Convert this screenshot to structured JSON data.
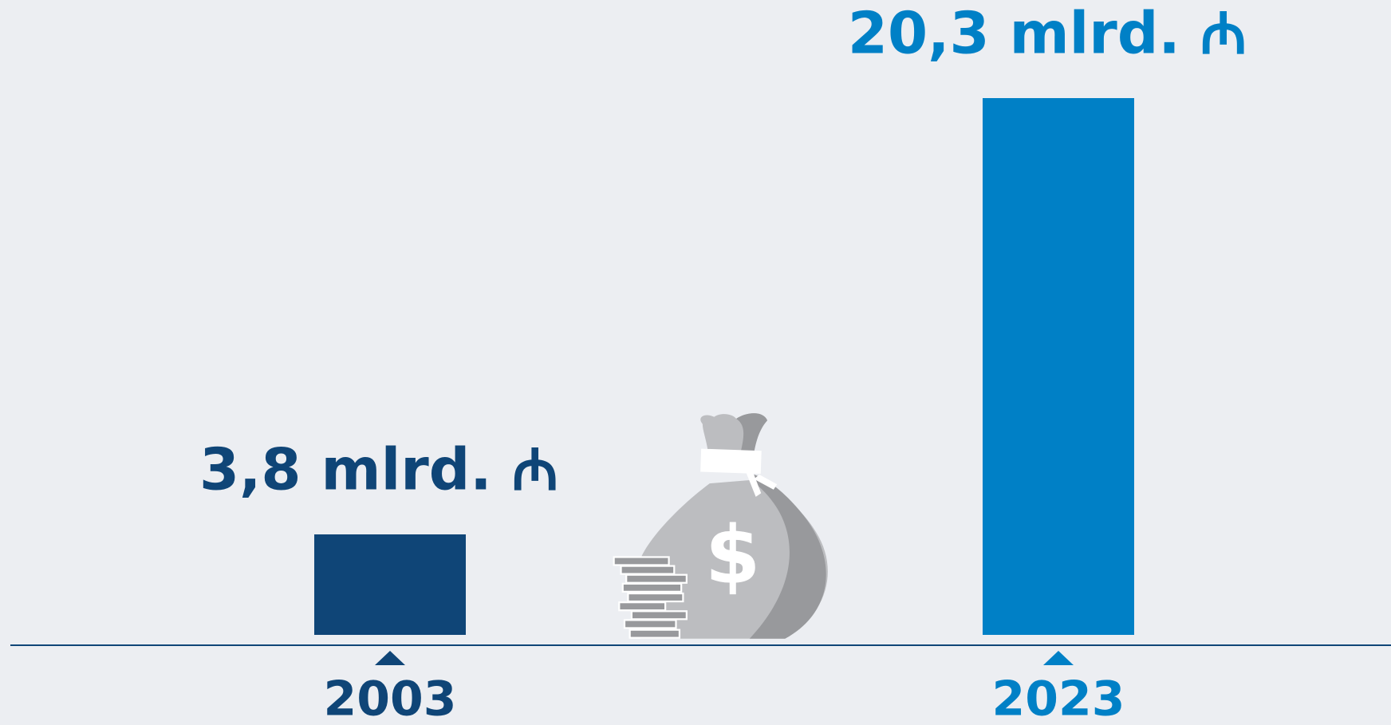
{
  "chart_data": {
    "type": "bar",
    "categories": [
      "2003",
      "2023"
    ],
    "values": [
      3.8,
      20.3
    ],
    "value_labels": [
      "3,8 mlrd. ₼",
      "20,3 mlrd. ₼"
    ],
    "colors": [
      "#0f4577",
      "#0080c6"
    ]
  }
}
